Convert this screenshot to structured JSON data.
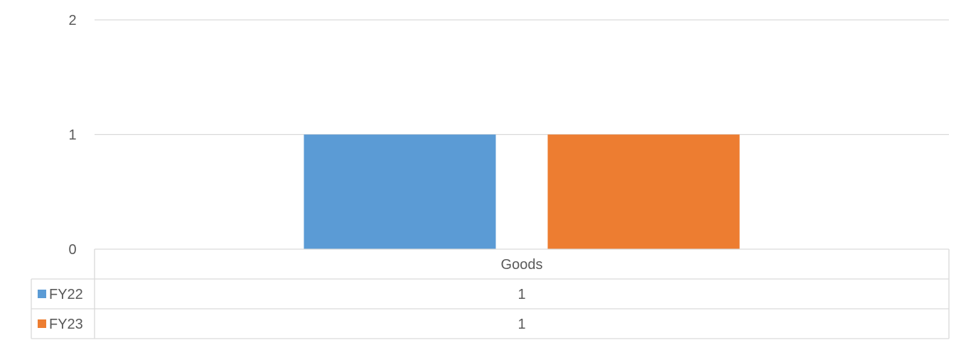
{
  "chart_data": {
    "type": "bar",
    "categories": [
      "Goods"
    ],
    "series": [
      {
        "name": "FY22",
        "values": [
          1
        ],
        "color": "#5B9BD5"
      },
      {
        "name": "FY23",
        "values": [
          1
        ],
        "color": "#ED7D31"
      }
    ],
    "ylim": [
      0,
      2
    ],
    "yticks": [
      "0",
      "1",
      "2"
    ],
    "grid": true,
    "legend": "data-table",
    "data_table": {
      "header": [
        "Goods"
      ],
      "rows": [
        {
          "label": "FY22",
          "values": [
            "1"
          ]
        },
        {
          "label": "FY23",
          "values": [
            "1"
          ]
        }
      ]
    },
    "gridline_color": "#D9D9D9",
    "text_color": "#595959"
  }
}
